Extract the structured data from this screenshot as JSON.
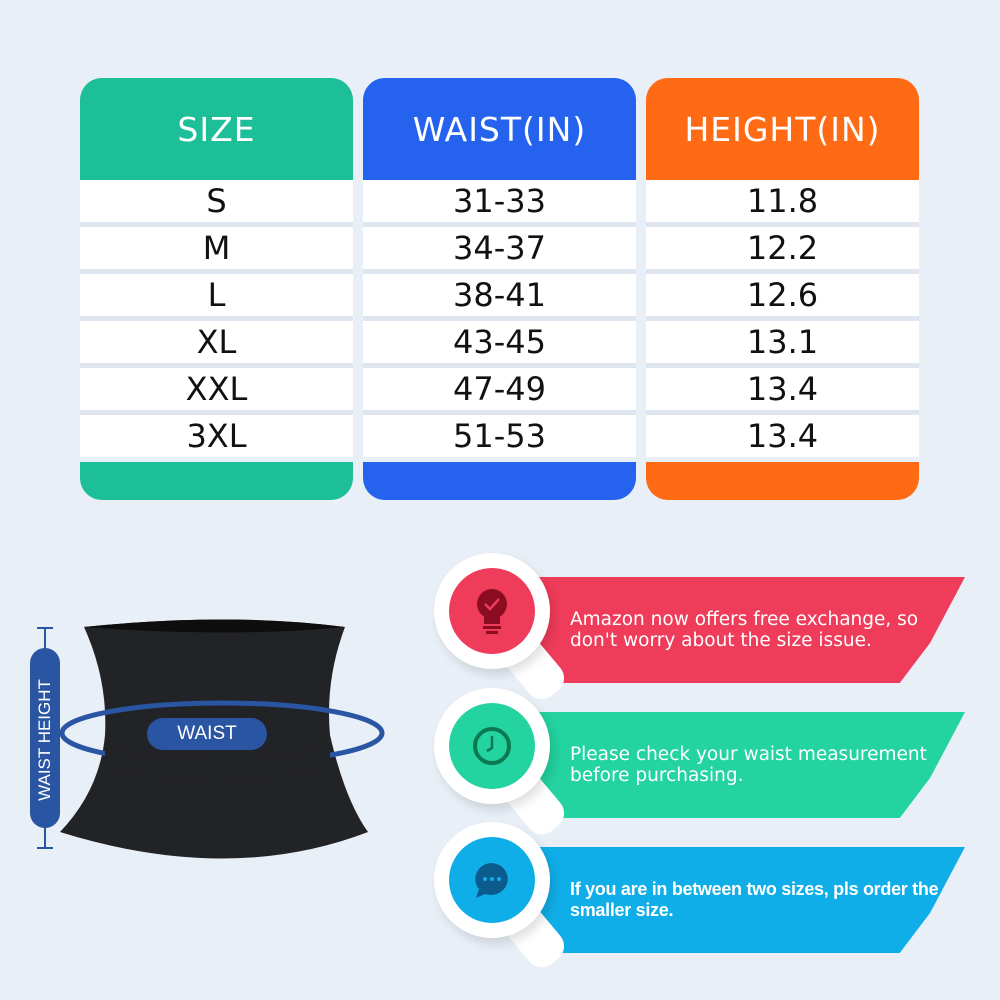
{
  "colors": {
    "size": "#1dbf98",
    "waist": "#2563ef",
    "height": "#ff6a14",
    "bg": "#e9eff7",
    "red": "#ef3c5a",
    "green": "#23d3a0",
    "blue": "#10aee8",
    "label_blue": "#2a55a3"
  },
  "table": {
    "headers": [
      "SIZE",
      "WAIST(IN)",
      "HEIGHT(IN)"
    ],
    "sizes": [
      "S",
      "M",
      "L",
      "XL",
      "XXL",
      "3XL"
    ],
    "waist": [
      "31-33",
      "34-37",
      "38-41",
      "43-45",
      "47-49",
      "51-53"
    ],
    "height": [
      "11.8",
      "12.2",
      "12.6",
      "13.1",
      "13.4",
      "13.4"
    ]
  },
  "diagram": {
    "waist_label": "WAIST",
    "height_label": "WAIST HEIGHT"
  },
  "tips": [
    {
      "icon": "lightbulb-check-icon",
      "text": "Amazon now offers free exchange, so don't worry about the size issue."
    },
    {
      "icon": "clock-icon",
      "text": "Please check your waist measurement before purchasing."
    },
    {
      "icon": "chat-bubble-icon",
      "text": "If you are in between two sizes, pls order the smaller size."
    }
  ]
}
